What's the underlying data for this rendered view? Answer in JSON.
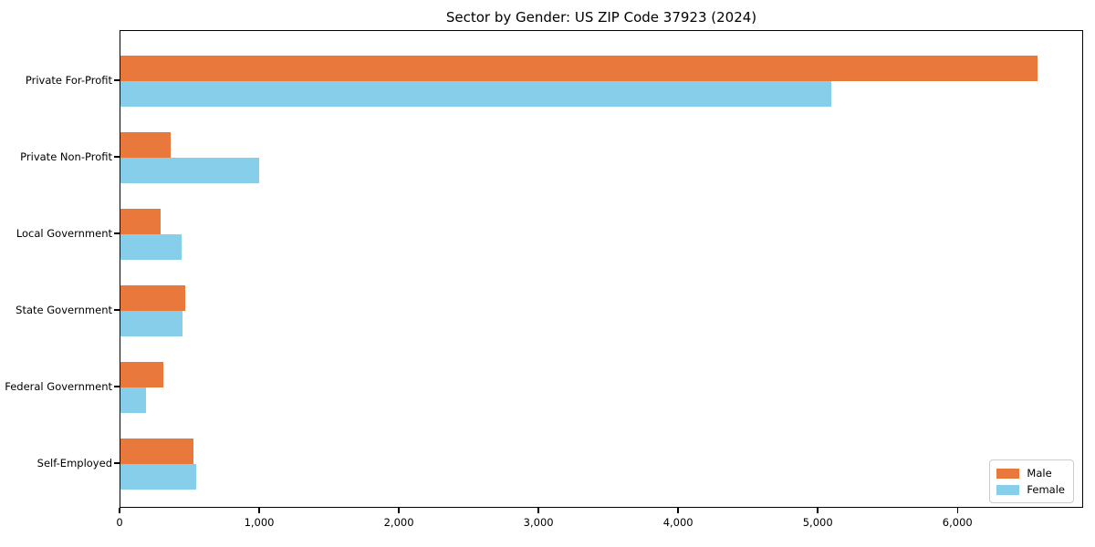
{
  "title": "Sector by Gender: US ZIP Code 37923 (2024)",
  "chart_data": {
    "type": "bar",
    "orientation": "horizontal",
    "title": "Sector by Gender: US ZIP Code 37923 (2024)",
    "categories": [
      "Private For-Profit",
      "Private Non-Profit",
      "Local Government",
      "State Government",
      "Federal Government",
      "Self-Employed"
    ],
    "series": [
      {
        "name": "Male",
        "color": "#E8783C",
        "values": [
          6570,
          360,
          290,
          465,
          310,
          520
        ]
      },
      {
        "name": "Female",
        "color": "#87CEEB",
        "values": [
          5090,
          990,
          440,
          445,
          185,
          540
        ]
      }
    ],
    "xlabel": "",
    "ylabel": "",
    "xlim": [
      0,
      6900
    ],
    "xticks": [
      0,
      1000,
      2000,
      3000,
      4000,
      5000,
      6000
    ],
    "xtick_labels": [
      "0",
      "1,000",
      "2,000",
      "3,000",
      "4,000",
      "5,000",
      "6,000"
    ],
    "grid": false,
    "legend": {
      "position": "lower right",
      "entries": [
        {
          "label": "Male",
          "color": "#E8783C"
        },
        {
          "label": "Female",
          "color": "#87CEEB"
        }
      ]
    }
  }
}
